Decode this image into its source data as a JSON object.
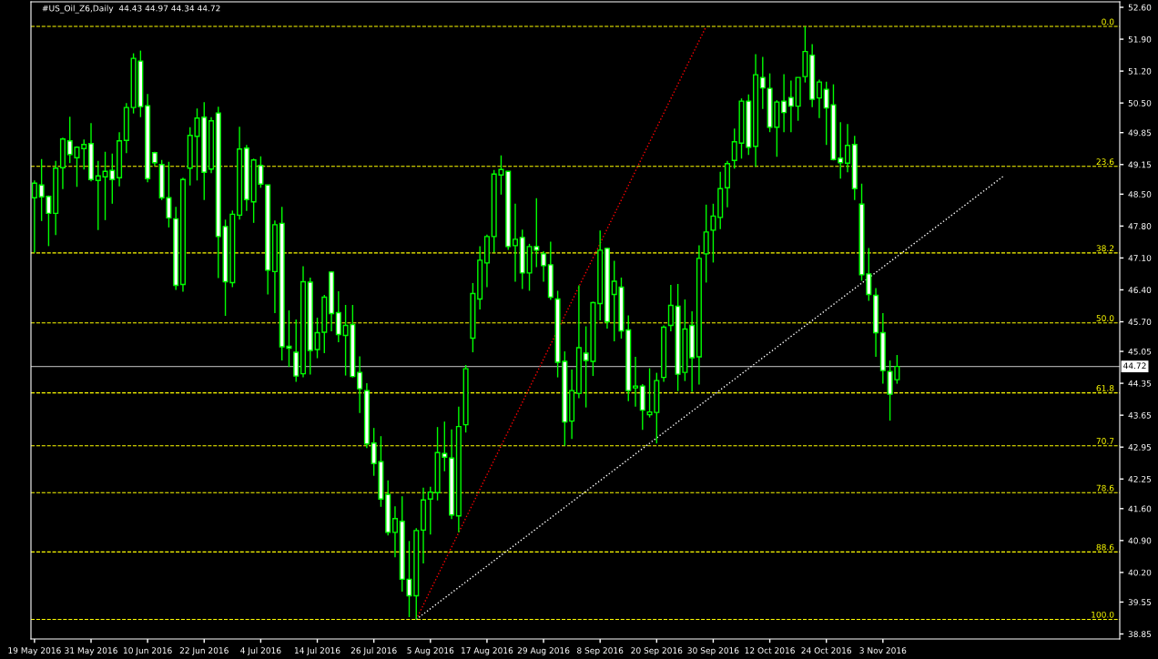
{
  "chart_data": {
    "type": "candlestick",
    "title": "#US_Oil_Z6,Daily  44.43 44.97 44.34 44.72",
    "categories": [
      "19 May 2016",
      null,
      null,
      null,
      null,
      null,
      null,
      null,
      "31 May 2016",
      null,
      null,
      null,
      null,
      null,
      null,
      null,
      "10 Jun 2016",
      null,
      null,
      null,
      null,
      null,
      null,
      null,
      "22 Jun 2016",
      null,
      null,
      null,
      null,
      null,
      null,
      null,
      "4 Jul 2016",
      null,
      null,
      null,
      null,
      null,
      null,
      null,
      "14 Jul 2016",
      null,
      null,
      null,
      null,
      null,
      null,
      null,
      "26 Jul 2016",
      null,
      null,
      null,
      null,
      null,
      null,
      null,
      "5 Aug 2016",
      null,
      null,
      null,
      null,
      null,
      null,
      null,
      "17 Aug 2016",
      null,
      null,
      null,
      null,
      null,
      null,
      null,
      "29 Aug 2016",
      null,
      null,
      null,
      null,
      null,
      null,
      null,
      "8 Sep 2016",
      null,
      null,
      null,
      null,
      null,
      null,
      null,
      "20 Sep 2016",
      null,
      null,
      null,
      null,
      null,
      null,
      null,
      "30 Sep 2016",
      null,
      null,
      null,
      null,
      null,
      null,
      null,
      "12 Oct 2016",
      null,
      null,
      null,
      null,
      null,
      null,
      null,
      "24 Oct 2016",
      null,
      null,
      null,
      null,
      null,
      null,
      null,
      "3 Nov 2016",
      null,
      null,
      null,
      null,
      null,
      null,
      null,
      null,
      null,
      null,
      null,
      null,
      null,
      null,
      null,
      null,
      null,
      null,
      null,
      null,
      null,
      null,
      null,
      null,
      null,
      null,
      null,
      null,
      null,
      null,
      null,
      null,
      null
    ],
    "series": [
      {
        "color": "#00ff00",
        "ohlc": [
          [
            48.42,
            48.8,
            47.22,
            48.74
          ],
          [
            48.7,
            49.27,
            47.91,
            48.44
          ],
          [
            48.45,
            48.47,
            47.36,
            48.08
          ],
          [
            48.08,
            49.23,
            47.6,
            49.07
          ],
          [
            49.08,
            49.74,
            48.61,
            49.71
          ],
          [
            49.67,
            50.2,
            49.18,
            49.37
          ],
          [
            49.3,
            49.55,
            48.66,
            49.53
          ],
          [
            49.5,
            49.7,
            49.04,
            49.59
          ],
          [
            49.61,
            50.06,
            48.78,
            48.82
          ],
          [
            48.8,
            49.23,
            47.71,
            48.9
          ],
          [
            48.88,
            49.43,
            47.93,
            49.0
          ],
          [
            49.02,
            49.39,
            48.29,
            48.82
          ],
          [
            48.86,
            49.86,
            48.67,
            49.67
          ],
          [
            49.68,
            50.5,
            49.4,
            50.4
          ],
          [
            50.4,
            51.59,
            50.27,
            51.48
          ],
          [
            51.42,
            51.65,
            50.19,
            50.42
          ],
          [
            50.44,
            50.7,
            48.76,
            48.84
          ],
          [
            49.41,
            49.43,
            49.12,
            49.19
          ],
          [
            49.15,
            49.25,
            48.37,
            48.42
          ],
          [
            48.42,
            49.21,
            47.77,
            47.98
          ],
          [
            47.96,
            48.22,
            46.4,
            46.5
          ],
          [
            46.52,
            48.86,
            46.36,
            48.82
          ],
          [
            49.07,
            49.97,
            48.69,
            49.79
          ],
          [
            49.77,
            50.38,
            48.8,
            50.17
          ],
          [
            50.19,
            50.52,
            48.37,
            48.98
          ],
          [
            49.05,
            50.19,
            48.96,
            50.11
          ],
          [
            50.28,
            50.42,
            46.66,
            47.57
          ],
          [
            47.79,
            47.94,
            45.83,
            46.58
          ],
          [
            46.56,
            48.14,
            46.46,
            48.06
          ],
          [
            48.04,
            49.98,
            47.94,
            49.49
          ],
          [
            49.51,
            49.58,
            48.13,
            48.38
          ],
          [
            48.33,
            49.28,
            47.87,
            49.25
          ],
          [
            49.13,
            49.33,
            48.64,
            48.72
          ],
          [
            48.7,
            48.7,
            46.3,
            46.83
          ],
          [
            46.8,
            47.92,
            45.89,
            47.83
          ],
          [
            47.86,
            48.22,
            44.85,
            45.15
          ],
          [
            45.16,
            45.95,
            44.71,
            45.12
          ],
          [
            45.03,
            45.75,
            44.38,
            44.51
          ],
          [
            44.56,
            46.92,
            44.48,
            46.58
          ],
          [
            46.57,
            46.67,
            44.54,
            45.07
          ],
          [
            45.09,
            45.79,
            44.9,
            45.46
          ],
          [
            45.47,
            46.29,
            45.01,
            46.24
          ],
          [
            46.79,
            46.81,
            45.49,
            45.88
          ],
          [
            45.9,
            46.37,
            45.25,
            45.42
          ],
          [
            45.4,
            46.07,
            44.52,
            45.62
          ],
          [
            45.64,
            46.07,
            44.48,
            44.5
          ],
          [
            44.59,
            44.94,
            43.7,
            44.23
          ],
          [
            44.19,
            44.35,
            42.93,
            43.02
          ],
          [
            43.04,
            43.37,
            42.32,
            42.59
          ],
          [
            42.63,
            43.19,
            41.64,
            41.81
          ],
          [
            41.91,
            42.22,
            41.01,
            41.08
          ],
          [
            41.08,
            41.65,
            40.53,
            41.38
          ],
          [
            41.32,
            41.87,
            39.78,
            40.05
          ],
          [
            40.05,
            40.89,
            39.22,
            39.69
          ],
          [
            39.69,
            41.17,
            39.17,
            41.12
          ],
          [
            41.13,
            42.06,
            40.4,
            41.79
          ],
          [
            41.81,
            42.08,
            41.03,
            41.96
          ],
          [
            41.95,
            43.39,
            41.78,
            42.83
          ],
          [
            42.81,
            43.51,
            42.42,
            42.73
          ],
          [
            42.71,
            43.34,
            41.37,
            41.46
          ],
          [
            41.44,
            43.84,
            41.08,
            43.4
          ],
          [
            43.44,
            44.75,
            43.27,
            44.67
          ],
          [
            45.34,
            46.55,
            45.03,
            46.32
          ],
          [
            46.2,
            47.36,
            45.97,
            47.05
          ],
          [
            46.99,
            47.61,
            46.46,
            47.57
          ],
          [
            47.57,
            49.03,
            47.22,
            48.94
          ],
          [
            48.92,
            49.35,
            48.49,
            49.04
          ],
          [
            49.0,
            49.0,
            47.28,
            47.35
          ],
          [
            47.37,
            48.29,
            46.58,
            47.51
          ],
          [
            47.55,
            47.72,
            46.42,
            46.77
          ],
          [
            46.77,
            47.41,
            46.38,
            47.35
          ],
          [
            47.35,
            48.41,
            46.9,
            47.27
          ],
          [
            47.19,
            47.25,
            46.58,
            46.93
          ],
          [
            46.95,
            47.46,
            46.18,
            46.24
          ],
          [
            46.2,
            46.38,
            44.48,
            44.81
          ],
          [
            44.83,
            45.05,
            42.98,
            43.5
          ],
          [
            43.52,
            44.65,
            43.13,
            44.19
          ],
          [
            44.13,
            46.5,
            44.02,
            45.13
          ],
          [
            45.01,
            45.6,
            43.82,
            44.85
          ],
          [
            44.83,
            46.14,
            44.51,
            46.12
          ],
          [
            46.1,
            47.7,
            45.73,
            47.27
          ],
          [
            47.31,
            47.33,
            45.55,
            45.7
          ],
          [
            46.3,
            47.04,
            45.27,
            46.59
          ],
          [
            46.46,
            46.67,
            45.33,
            45.5
          ],
          [
            45.52,
            45.84,
            43.96,
            44.19
          ],
          [
            44.25,
            44.93,
            43.84,
            44.29
          ],
          [
            44.29,
            44.33,
            43.33,
            43.76
          ],
          [
            43.66,
            44.68,
            43.6,
            43.72
          ],
          [
            43.71,
            44.58,
            43.03,
            44.41
          ],
          [
            44.48,
            45.62,
            44.38,
            45.58
          ],
          [
            45.62,
            46.51,
            45.49,
            46.06
          ],
          [
            46.04,
            46.53,
            44.18,
            44.55
          ],
          [
            44.59,
            46.19,
            44.4,
            45.54
          ],
          [
            45.62,
            45.93,
            44.16,
            44.91
          ],
          [
            44.93,
            47.38,
            44.32,
            47.09
          ],
          [
            47.19,
            48.27,
            46.56,
            47.67
          ],
          [
            47.71,
            48.29,
            47.0,
            48.02
          ],
          [
            47.99,
            48.99,
            47.73,
            48.62
          ],
          [
            48.64,
            49.23,
            48.21,
            49.17
          ],
          [
            49.24,
            49.94,
            49.06,
            49.65
          ],
          [
            49.62,
            50.6,
            49.28,
            50.54
          ],
          [
            50.54,
            50.69,
            49.36,
            49.53
          ],
          [
            49.55,
            51.57,
            49.1,
            51.12
          ],
          [
            51.06,
            51.51,
            50.37,
            50.83
          ],
          [
            50.82,
            51.15,
            49.86,
            49.97
          ],
          [
            49.97,
            50.56,
            49.32,
            50.52
          ],
          [
            50.54,
            51.13,
            49.86,
            50.29
          ],
          [
            50.62,
            50.99,
            49.86,
            50.43
          ],
          [
            50.43,
            51.06,
            50.11,
            51.06
          ],
          [
            51.08,
            52.18,
            50.95,
            51.63
          ],
          [
            51.55,
            51.79,
            50.41,
            50.58
          ],
          [
            50.61,
            51.01,
            50.17,
            50.96
          ],
          [
            50.8,
            50.97,
            49.58,
            50.39
          ],
          [
            50.46,
            50.91,
            49.24,
            49.26
          ],
          [
            49.29,
            50.08,
            48.84,
            49.19
          ],
          [
            49.18,
            50.04,
            48.98,
            49.57
          ],
          [
            49.59,
            49.78,
            48.37,
            48.62
          ],
          [
            48.28,
            48.73,
            46.6,
            46.73
          ],
          [
            46.75,
            47.32,
            46.16,
            46.3
          ],
          [
            46.28,
            46.44,
            44.93,
            45.46
          ],
          [
            45.46,
            45.89,
            44.34,
            44.63
          ],
          [
            44.61,
            44.85,
            43.53,
            44.11
          ],
          [
            44.43,
            44.97,
            44.34,
            44.72
          ],
          null,
          null,
          null,
          null,
          null,
          null,
          null,
          null,
          null,
          null,
          null,
          null,
          null,
          null,
          null,
          null,
          null,
          null,
          null,
          null,
          null,
          null,
          null,
          null,
          null,
          null,
          null,
          null,
          null,
          null,
          null
        ]
      },
      {
        "type": "line",
        "color": "#ff0000",
        "line_style": "dotted",
        "values": [
          null,
          null,
          null,
          null,
          null,
          null,
          null,
          null,
          null,
          null,
          null,
          null,
          null,
          null,
          null,
          null,
          null,
          null,
          null,
          null,
          null,
          null,
          null,
          null,
          null,
          null,
          null,
          null,
          null,
          null,
          null,
          null,
          null,
          null,
          null,
          null,
          null,
          null,
          null,
          null,
          null,
          null,
          null,
          null,
          null,
          null,
          null,
          null,
          null,
          null,
          null,
          null,
          null,
          null,
          39.17,
          null,
          null,
          null,
          null,
          null,
          null,
          null,
          null,
          null,
          null,
          null,
          null,
          null,
          null,
          null,
          null,
          null,
          null,
          null,
          null,
          null,
          null,
          null,
          null,
          null,
          null,
          null,
          null,
          null,
          null,
          null,
          null,
          null,
          null,
          null,
          null,
          null,
          null,
          null,
          null,
          52.18,
          null,
          null,
          null,
          null,
          null,
          null,
          null,
          null,
          null,
          null,
          null,
          null,
          null,
          null,
          null,
          null,
          null,
          null,
          null,
          null,
          null,
          null,
          null,
          null,
          null,
          null,
          null,
          null,
          null,
          null,
          null,
          null,
          null,
          null,
          null,
          null,
          null,
          null,
          null,
          null,
          null,
          null,
          null,
          null,
          null,
          null,
          null,
          null,
          null,
          null,
          null,
          null,
          null,
          null,
          null,
          null,
          null,
          null
        ]
      },
      {
        "type": "line",
        "color": "#ffffff",
        "line_style": "dotted",
        "values": [
          null,
          null,
          null,
          null,
          null,
          null,
          null,
          null,
          null,
          null,
          null,
          null,
          null,
          null,
          null,
          null,
          null,
          null,
          null,
          null,
          null,
          null,
          null,
          null,
          null,
          null,
          null,
          null,
          null,
          null,
          null,
          null,
          null,
          null,
          null,
          null,
          null,
          null,
          null,
          null,
          null,
          null,
          null,
          null,
          null,
          null,
          null,
          null,
          null,
          null,
          null,
          null,
          null,
          null,
          39.17,
          null,
          null,
          null,
          null,
          null,
          null,
          null,
          null,
          null,
          null,
          null,
          null,
          null,
          null,
          null,
          null,
          null,
          null,
          null,
          null,
          null,
          null,
          null,
          null,
          null,
          null,
          null,
          null,
          null,
          null,
          null,
          null,
          null,
          null,
          null,
          null,
          null,
          null,
          null,
          null,
          null,
          null,
          null,
          null,
          null,
          null,
          null,
          null,
          null,
          null,
          null,
          null,
          null,
          null,
          null,
          null,
          null,
          null,
          null,
          null,
          null,
          null,
          null,
          null,
          null,
          null,
          null,
          null,
          null,
          null,
          null,
          null,
          null,
          null,
          null,
          null,
          null,
          null,
          null,
          null,
          null,
          null,
          48.89,
          null,
          null,
          null,
          null,
          null,
          null,
          null,
          null,
          null,
          null,
          null,
          null,
          null,
          null,
          null,
          null
        ]
      }
    ],
    "ylim": [
      38.74,
      52.72
    ],
    "yticks": [
      {
        "value": 52.6,
        "label": "52.60"
      },
      {
        "value": 51.9,
        "label": "51.90"
      },
      {
        "value": 51.2,
        "label": "51.20"
      },
      {
        "value": 50.5,
        "label": "50.50"
      },
      {
        "value": 49.85,
        "label": "49.85"
      },
      {
        "value": 49.15,
        "label": "49.15"
      },
      {
        "value": 48.5,
        "label": "48.50"
      },
      {
        "value": 47.8,
        "label": "47.80"
      },
      {
        "value": 47.1,
        "label": "47.10"
      },
      {
        "value": 46.4,
        "label": "46.40"
      },
      {
        "value": 45.7,
        "label": "45.70"
      },
      {
        "value": 45.05,
        "label": "45.05"
      },
      {
        "value": 44.35,
        "label": "44.35"
      },
      {
        "value": 43.65,
        "label": "43.65"
      },
      {
        "value": 42.95,
        "label": "42.95"
      },
      {
        "value": 42.25,
        "label": "42.25"
      },
      {
        "value": 41.6,
        "label": "41.60"
      },
      {
        "value": 40.9,
        "label": "40.90"
      },
      {
        "value": 40.2,
        "label": "40.20"
      },
      {
        "value": 39.55,
        "label": "39.55"
      },
      {
        "value": 38.85,
        "label": "38.85"
      }
    ],
    "ref_lines": [
      {
        "axis": "y",
        "value": 52.18,
        "color": "#ffff00",
        "line_style": "dashed"
      },
      {
        "axis": "y",
        "value": 49.11,
        "color": "#ffff00",
        "line_style": "dashed"
      },
      {
        "axis": "y",
        "value": 47.21,
        "color": "#ffff00",
        "line_style": "dashed"
      },
      {
        "axis": "y",
        "value": 45.675,
        "color": "#ffff00",
        "line_style": "dashed"
      },
      {
        "axis": "y",
        "value": 44.14,
        "color": "#ffff00",
        "line_style": "dashed"
      },
      {
        "axis": "y",
        "value": 42.98,
        "color": "#ffff00",
        "line_style": "dashed"
      },
      {
        "axis": "y",
        "value": 41.95,
        "color": "#ffff00",
        "line_style": "dashed"
      },
      {
        "axis": "y",
        "value": 40.65,
        "color": "#ffff00",
        "line_style": "dashed"
      },
      {
        "axis": "y",
        "value": 39.17,
        "color": "#ffff00",
        "line_style": "dashed"
      },
      {
        "axis": "y",
        "value": 44.72,
        "label": "44.72",
        "color": "#a0a0a0",
        "line_style": "solid"
      }
    ],
    "annotations": [
      {
        "text": "0.0",
        "y": 52.18
      },
      {
        "text": "23.6",
        "y": 49.11
      },
      {
        "text": "38.2",
        "y": 47.21
      },
      {
        "text": "50.0",
        "y": 45.675
      },
      {
        "text": "61.8",
        "y": 44.14
      },
      {
        "text": "70.7",
        "y": 42.98
      },
      {
        "text": "78.6",
        "y": 41.95
      },
      {
        "text": "88.6",
        "y": 40.65
      },
      {
        "text": "100.0",
        "y": 39.17
      }
    ]
  }
}
